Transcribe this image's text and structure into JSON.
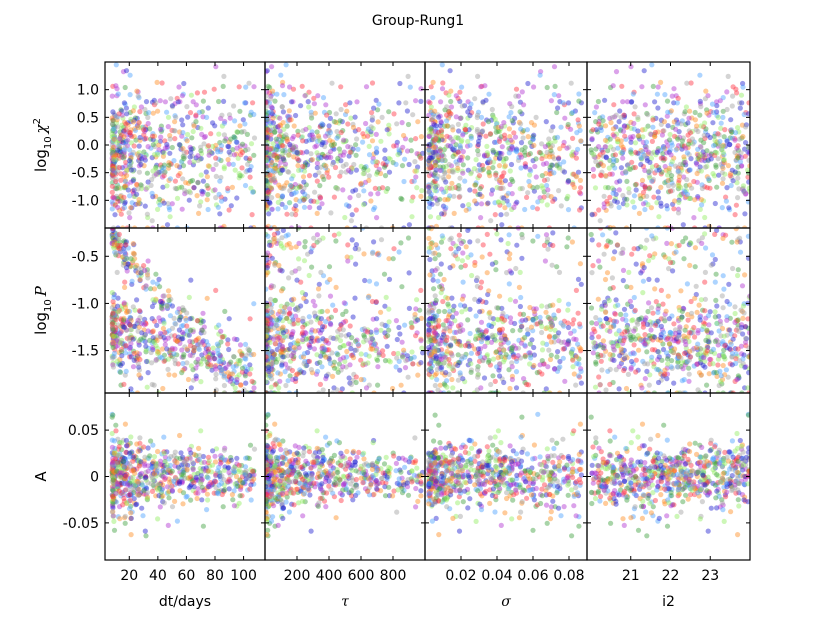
{
  "chart_data": {
    "type": "scatter",
    "title": "Group-Rung1",
    "grid": false,
    "legend": "none",
    "point_colors": [
      "#1f1fd0",
      "#ff3040",
      "#3fa03f",
      "#4aa0ff",
      "#b030d0",
      "#90ee60",
      "#a0a0a0",
      "#ff8c20"
    ],
    "columns": [
      {
        "id": "dt",
        "xlabel": "dt/days",
        "xlim": [
          3,
          115
        ],
        "xticks": [
          20,
          40,
          60,
          80,
          100
        ],
        "xticklabels": [
          "20",
          "40",
          "60",
          "80",
          "100"
        ]
      },
      {
        "id": "tau",
        "xlabel": "τ",
        "xlim": [
          0,
          1000
        ],
        "xticks": [
          200,
          400,
          600,
          800
        ],
        "xticklabels": [
          "200",
          "400",
          "600",
          "800"
        ]
      },
      {
        "id": "sigma",
        "xlabel": "σ",
        "xlim": [
          0.0,
          0.09
        ],
        "xticks": [
          0.02,
          0.04,
          0.06,
          0.08
        ],
        "xticklabels": [
          "0.02",
          "0.04",
          "0.06",
          "0.08"
        ]
      },
      {
        "id": "i2",
        "xlabel": "i2",
        "xlim": [
          19.9,
          24.0
        ],
        "xticks": [
          21,
          22,
          23
        ],
        "xticklabels": [
          "21",
          "22",
          "23"
        ]
      }
    ],
    "rows": [
      {
        "id": "chi2",
        "ylabel": "log10 χ2",
        "ylabel_base": "log",
        "ylabel_sub": "10",
        "ylabel_var": "χ",
        "ylabel_sup": "2",
        "ylim": [
          -1.5,
          1.5
        ],
        "yticks": [
          -1.0,
          -0.5,
          0.0,
          0.5,
          1.0
        ],
        "yticklabels": [
          "-1.0",
          "-0.5",
          "0.0",
          "0.5",
          "1.0"
        ]
      },
      {
        "id": "P",
        "ylabel": "log10 P",
        "ylabel_base": "log",
        "ylabel_sub": "10",
        "ylabel_var": "P",
        "ylabel_sup": "",
        "ylim": [
          -1.95,
          -0.2
        ],
        "yticks": [
          -1.5,
          -1.0,
          -0.5
        ],
        "yticklabels": [
          "-1.5",
          "-1.0",
          "-0.5"
        ]
      },
      {
        "id": "A",
        "ylabel": "A",
        "ylabel_base": "",
        "ylabel_sub": "",
        "ylabel_var": "",
        "ylabel_sup": "",
        "ylim": [
          -0.09,
          0.09
        ],
        "yticks": [
          -0.05,
          0.0,
          0.05
        ],
        "yticklabels": [
          "-0.05",
          "0",
          "0.05"
        ]
      }
    ],
    "distributions": {
      "dt": {
        "approx_range": [
          8,
          110
        ],
        "concentration": "10 to 45 days"
      },
      "tau": {
        "approx_range": [
          5,
          1000
        ],
        "concentration": "below 300"
      },
      "sigma": {
        "approx_range": [
          0.001,
          0.09
        ],
        "concentration": "0.005 to 0.035"
      },
      "i2": {
        "approx_range": [
          20.0,
          24.0
        ],
        "concentration": "20.5 to 23.5"
      },
      "chi2": {
        "approx_range": [
          -1.5,
          1.45
        ]
      },
      "P": {
        "approx_range": [
          -1.95,
          -0.2
        ],
        "features": "upper envelope decreases with dt; second band near -1.5 at large dt"
      },
      "A": {
        "approx_range": [
          -0.09,
          0.09
        ],
        "features": "spread narrows as dt and tau increase"
      }
    }
  }
}
